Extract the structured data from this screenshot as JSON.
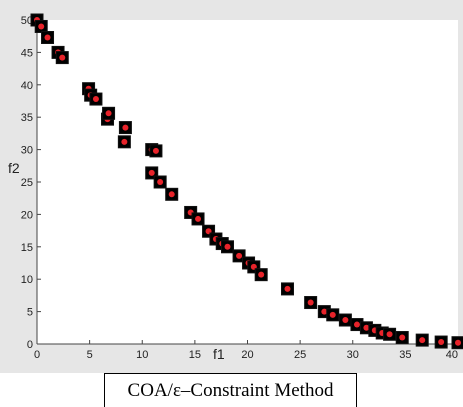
{
  "figure": {
    "caption": "COA/ε–Constraint Method"
  },
  "chart_data": {
    "type": "scatter",
    "title": "",
    "xlabel": "f1",
    "ylabel": "f2",
    "xlim": [
      0,
      40
    ],
    "ylim": [
      0,
      50
    ],
    "xticks": [
      0,
      5,
      10,
      15,
      20,
      25,
      30,
      35,
      40
    ],
    "yticks": [
      0,
      5,
      10,
      15,
      20,
      25,
      30,
      35,
      40,
      45,
      50
    ],
    "grid": false,
    "legend": "none",
    "colors": {
      "plot_background": "#e6e6e6",
      "axes_background": "#ffffff",
      "marker_edge": "#000000",
      "marker_fill": "#e8232a",
      "axis": "#444444"
    },
    "series": [
      {
        "marker": "square",
        "x": [
          0.0,
          0.4,
          1.0,
          2.0,
          2.4,
          4.9,
          5.1,
          5.6,
          6.7,
          6.8,
          8.3,
          8.4,
          10.9,
          11.3,
          10.9,
          11.7,
          12.8,
          14.6,
          15.3,
          16.3,
          17.0,
          17.6,
          18.1,
          19.2,
          20.1,
          20.6,
          21.3,
          23.8,
          26.0,
          27.3,
          28.1,
          29.3,
          30.4,
          31.3,
          32.1,
          32.8,
          33.5,
          34.7,
          36.6,
          38.4,
          40.0
        ],
        "y": [
          50.0,
          49.0,
          47.3,
          45.0,
          44.2,
          39.4,
          38.4,
          37.8,
          34.7,
          35.6,
          31.2,
          33.4,
          30.0,
          29.8,
          26.4,
          25.0,
          23.1,
          20.3,
          19.3,
          17.4,
          16.2,
          15.5,
          15.0,
          13.6,
          12.5,
          11.9,
          10.7,
          8.5,
          6.4,
          5.0,
          4.5,
          3.7,
          3.0,
          2.5,
          2.1,
          1.7,
          1.5,
          1.0,
          0.6,
          0.3,
          0.2
        ]
      }
    ]
  }
}
